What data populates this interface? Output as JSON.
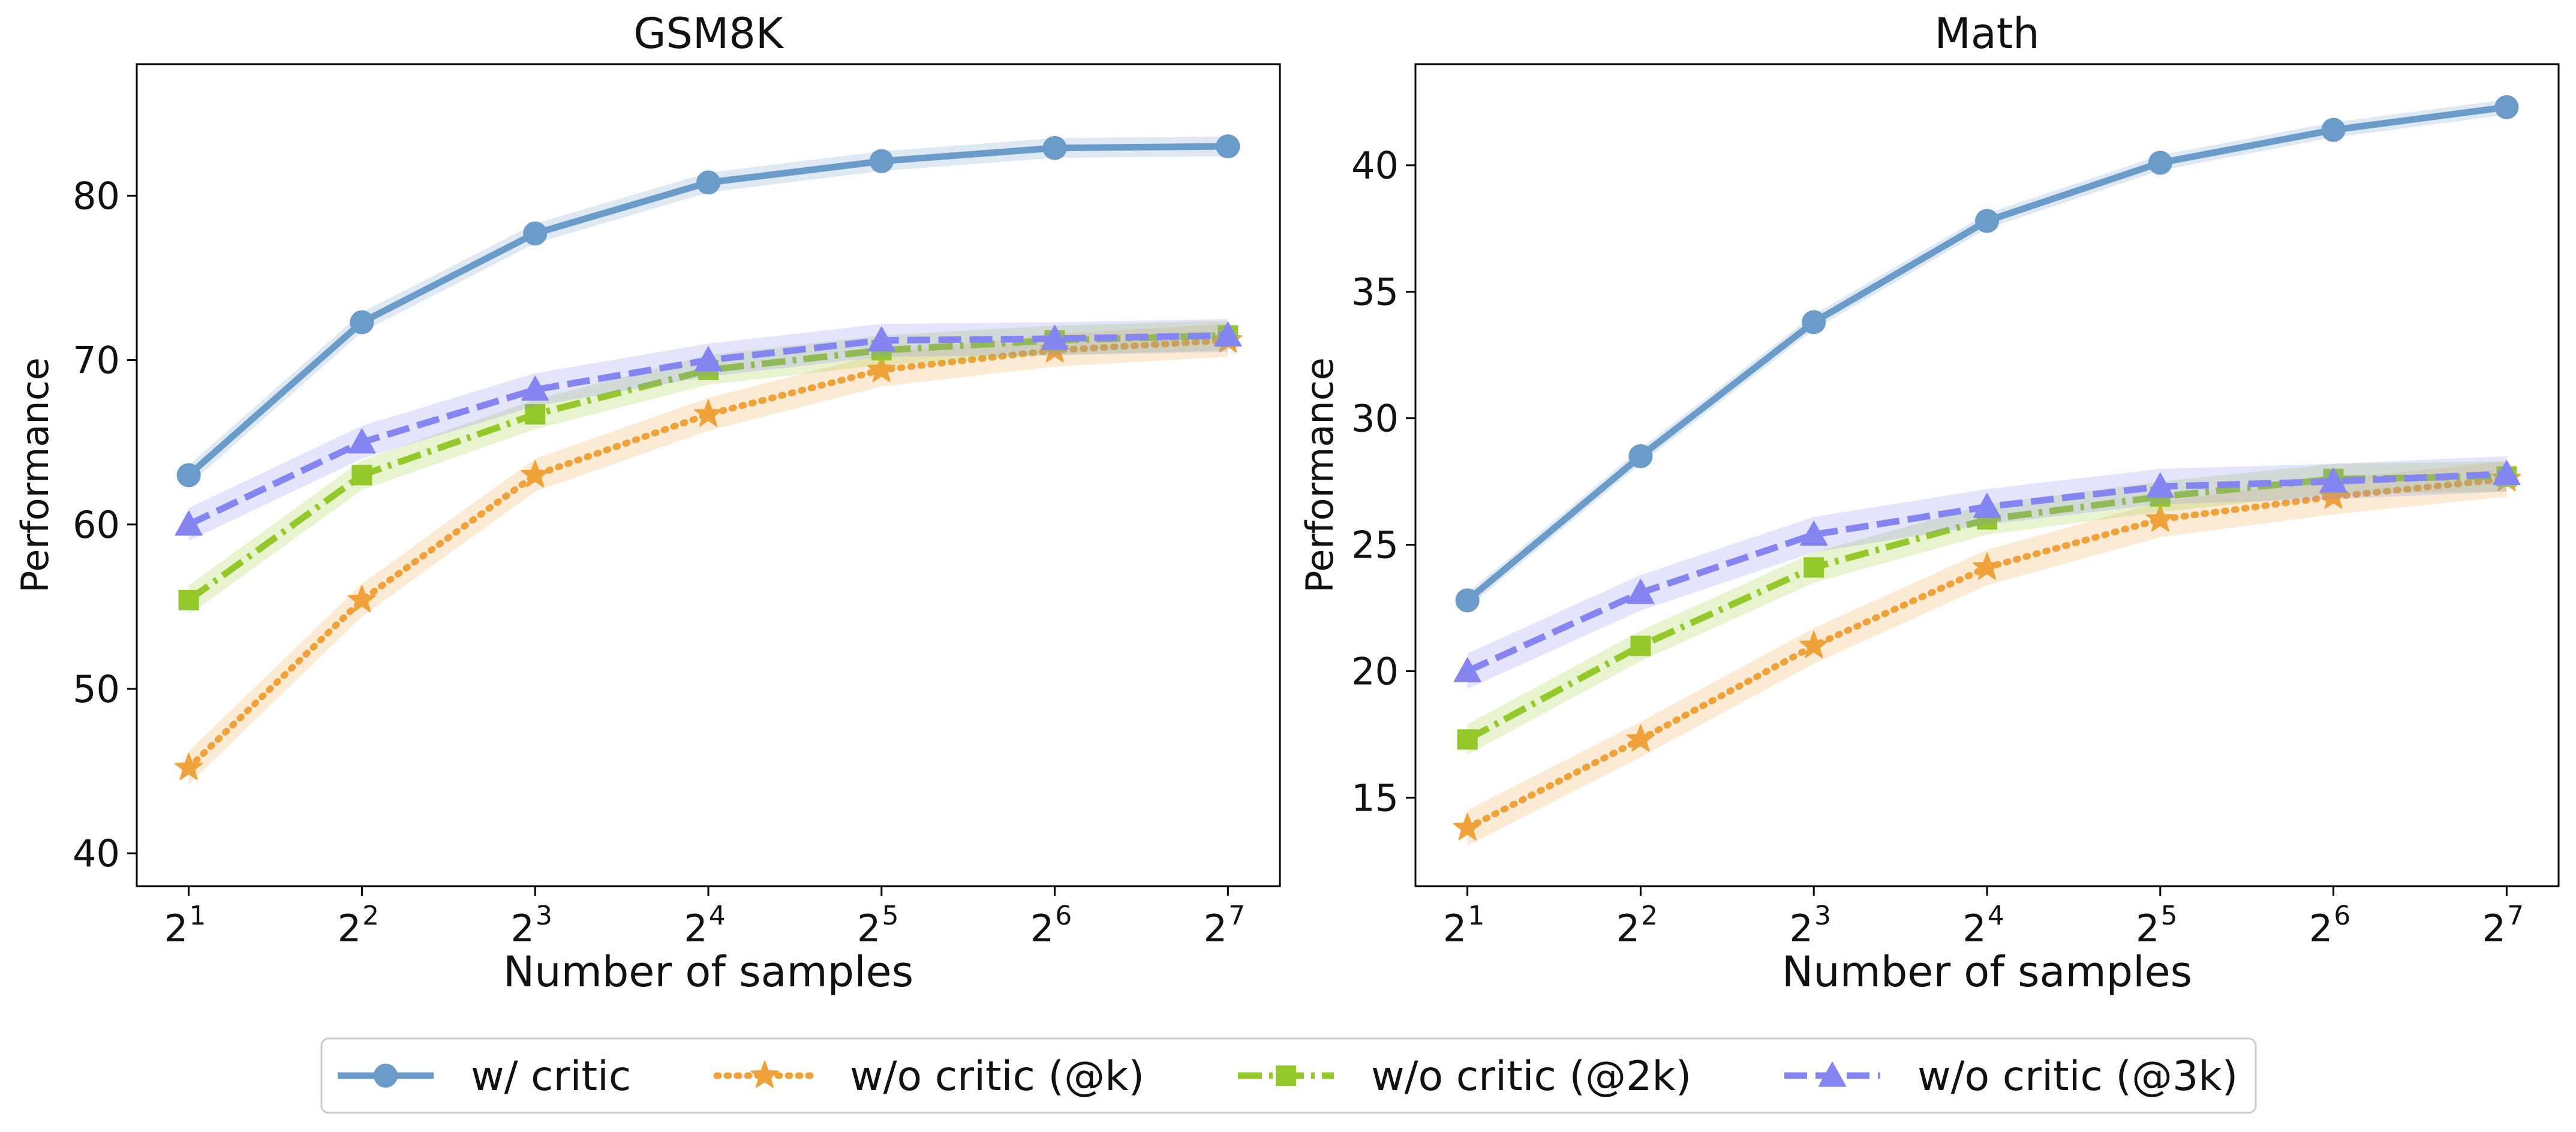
{
  "legend": {
    "placement": "bottom-center",
    "entries": [
      {
        "label": "w/ critic",
        "color": "#6a9bc9",
        "dash": "solid",
        "marker": "circle"
      },
      {
        "label": "w/o critic (@k)",
        "color": "#f0a23a",
        "dash": "dotted",
        "marker": "star"
      },
      {
        "label": "w/o critic (@2k)",
        "color": "#95c82b",
        "dash": "dashdot",
        "marker": "square"
      },
      {
        "label": "w/o critic (@3k)",
        "color": "#8585f2",
        "dash": "dashed",
        "marker": "triangle"
      }
    ]
  },
  "chart_data": [
    {
      "type": "line",
      "title": "GSM8K",
      "xlabel": "Number of samples",
      "ylabel": "Performance",
      "x": [
        1,
        2,
        3,
        4,
        5,
        6,
        7
      ],
      "xtick_base": "2",
      "xtick_exponents": [
        "1",
        "2",
        "3",
        "4",
        "5",
        "6",
        "7"
      ],
      "ylim": [
        38,
        88
      ],
      "yticks": [
        40,
        50,
        60,
        70,
        80
      ],
      "grid": false,
      "series": [
        {
          "name": "w/ critic",
          "values": [
            63.0,
            72.3,
            77.7,
            80.8,
            82.1,
            82.9,
            83.0
          ],
          "band": 0.6
        },
        {
          "name": "w/o critic (@k)",
          "values": [
            45.2,
            55.4,
            63.0,
            66.7,
            69.4,
            70.6,
            71.2
          ],
          "band": 1.0
        },
        {
          "name": "w/o critic (@2k)",
          "values": [
            55.4,
            63.0,
            66.7,
            69.4,
            70.6,
            71.2,
            71.5
          ],
          "band": 0.9
        },
        {
          "name": "w/o critic (@3k)",
          "values": [
            60.0,
            65.0,
            68.2,
            70.0,
            71.2,
            71.3,
            71.5
          ],
          "band": 1.0
        }
      ]
    },
    {
      "type": "line",
      "title": "Math",
      "xlabel": "Number of samples",
      "ylabel": "Performance",
      "x": [
        1,
        2,
        3,
        4,
        5,
        6,
        7
      ],
      "xtick_base": "2",
      "xtick_exponents": [
        "1",
        "2",
        "3",
        "4",
        "5",
        "6",
        "7"
      ],
      "ylim": [
        11.5,
        44.0
      ],
      "yticks": [
        15,
        20,
        25,
        30,
        35,
        40
      ],
      "grid": false,
      "series": [
        {
          "name": "w/ critic",
          "values": [
            22.8,
            28.5,
            33.8,
            37.8,
            40.1,
            41.4,
            42.3
          ],
          "band": 0.3
        },
        {
          "name": "w/o critic (@k)",
          "values": [
            13.8,
            17.3,
            21.0,
            24.1,
            26.0,
            26.9,
            27.6
          ],
          "band": 0.7
        },
        {
          "name": "w/o critic (@2k)",
          "values": [
            17.3,
            21.0,
            24.1,
            26.0,
            26.9,
            27.6,
            27.7
          ],
          "band": 0.6
        },
        {
          "name": "w/o critic (@3k)",
          "values": [
            20.0,
            23.1,
            25.4,
            26.5,
            27.3,
            27.5,
            27.8
          ],
          "band": 0.7
        }
      ]
    }
  ]
}
